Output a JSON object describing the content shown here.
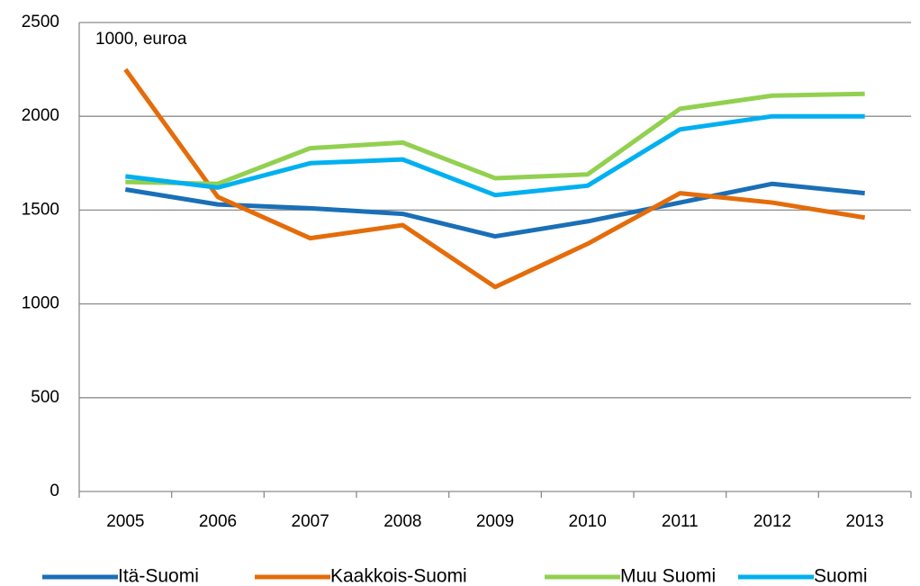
{
  "chart_data": {
    "type": "line",
    "annotation": "1000, euroa",
    "categories": [
      "2005",
      "2006",
      "2007",
      "2008",
      "2009",
      "2010",
      "2011",
      "2012",
      "2013"
    ],
    "series": [
      {
        "name": "Itä-Suomi",
        "color": "#1a6fb7",
        "values": [
          1610,
          1530,
          1510,
          1480,
          1360,
          1440,
          1540,
          1640,
          1590
        ]
      },
      {
        "name": "Kaakkois-Suomi",
        "color": "#e46c0a",
        "values": [
          2250,
          1570,
          1350,
          1420,
          1090,
          1320,
          1590,
          1540,
          1460
        ]
      },
      {
        "name": "Muu Suomi",
        "color": "#92d050",
        "values": [
          1650,
          1640,
          1830,
          1860,
          1670,
          1690,
          2040,
          2110,
          2120
        ]
      },
      {
        "name": "Suomi",
        "color": "#00b0f0",
        "values": [
          1680,
          1620,
          1750,
          1770,
          1580,
          1630,
          1930,
          2000,
          2000
        ]
      }
    ],
    "ylim": [
      0,
      2500
    ],
    "yticks": [
      0,
      500,
      1000,
      1500,
      2000,
      2500
    ],
    "grid": true,
    "legend": "bottom"
  }
}
